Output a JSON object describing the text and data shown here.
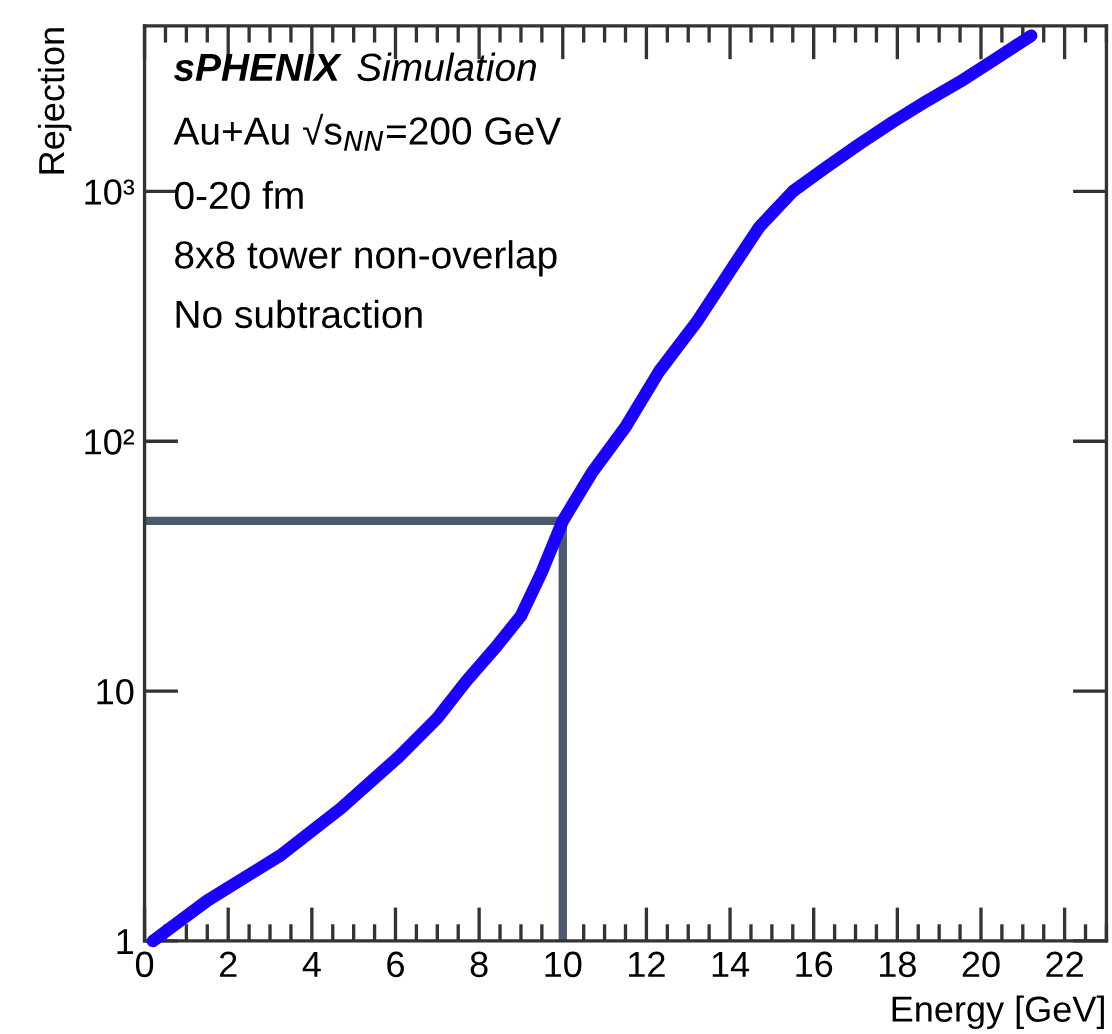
{
  "chart_data": {
    "type": "line",
    "xlabel": "Energy [GeV]",
    "ylabel": "Rejection",
    "annotations": [
      "sPHENIX",
      "Simulation",
      "Au+Au √s$_{NN}$=200 GeV",
      "0-20 fm",
      "8x8 tower non-overlap",
      "No subtraction"
    ],
    "ref_lines": [
      {
        "axis": "x",
        "value": 10,
        "color": "#4b5a6e"
      },
      {
        "axis": "y",
        "value": 48,
        "color": "#4b5a6e"
      }
    ],
    "series": [
      {
        "color": "#1a00ff",
        "x": [
          0.2,
          1.5,
          3.25,
          4.7,
          6.1,
          7.0,
          7.7,
          8.4,
          9.0,
          9.5,
          10.0,
          10.7,
          11.5,
          12.3,
          13.2,
          14.0,
          14.7,
          15.5,
          16.3,
          17.1,
          17.9,
          18.7,
          19.5,
          20.3,
          21.2
        ],
        "values": [
          1,
          1.45,
          2.2,
          3.4,
          5.5,
          7.8,
          11,
          15,
          20,
          30,
          48,
          75,
          114,
          190,
          300,
          480,
          720,
          1000,
          1250,
          1550,
          1900,
          2300,
          2750,
          3350,
          4200
        ]
      }
    ],
    "log": "y",
    "xlim": [
      0,
      23
    ],
    "ylim": [
      1,
      4600
    ],
    "xticks": [
      0,
      2,
      4,
      6,
      8,
      10,
      12,
      14,
      16,
      18,
      20,
      22
    ],
    "yticks": [
      1,
      10,
      {
        "value": 100,
        "label": "10²"
      },
      {
        "value": 1000,
        "label": "10³"
      }
    ],
    "grid": false,
    "legend": false,
    "marker": "none",
    "line_style": "solid"
  }
}
